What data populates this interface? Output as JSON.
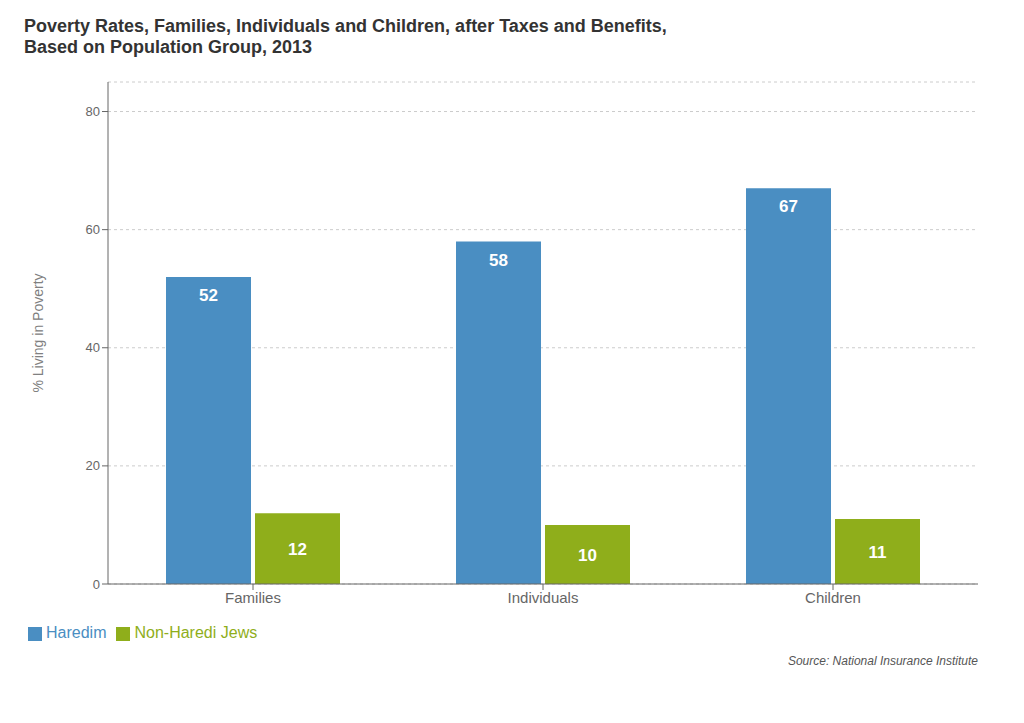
{
  "chart_data": {
    "type": "bar",
    "title": "Poverty Rates, Families, Individuals and Children, after Taxes and Benefits,\nBased on Population Group, 2013",
    "y_label": "% Living in Poverty",
    "categories": [
      "Families",
      "Individuals",
      "Children"
    ],
    "series": [
      {
        "name": "Haredim",
        "color": "#4a8ec2",
        "values": [
          52,
          58,
          67
        ]
      },
      {
        "name": "Non-Haredi Jews",
        "color": "#8fae1b",
        "values": [
          12,
          10,
          11
        ]
      }
    ],
    "ylim": [
      0,
      85
    ],
    "yticks": [
      0,
      20,
      40,
      60,
      80
    ],
    "grid": true,
    "legend": "lower left",
    "data_labels": true,
    "annotations": [
      "Source: National Insurance Institute"
    ]
  }
}
